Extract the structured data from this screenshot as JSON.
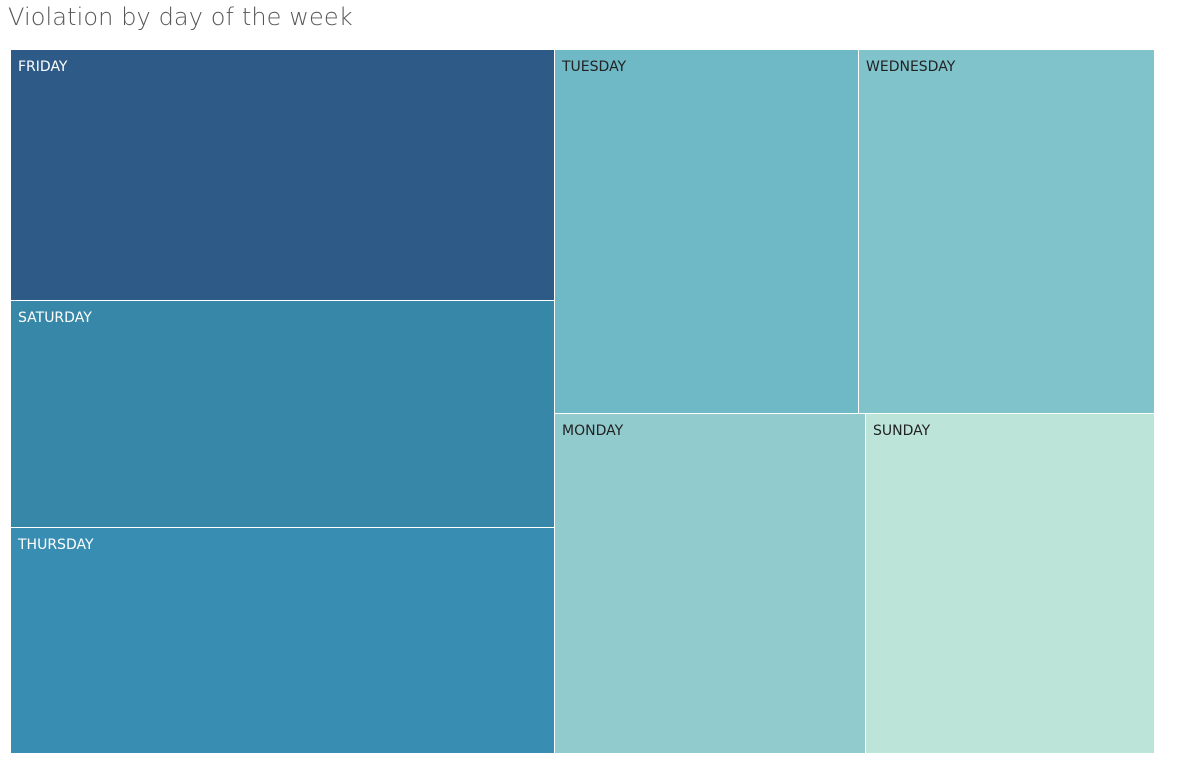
{
  "chart_data": {
    "type": "treemap",
    "title": "Violation by day of the week",
    "tiles": [
      {
        "label": "FRIDAY",
        "color": "#2e5a87",
        "text_color": "#ffffff"
      },
      {
        "label": "SATURDAY",
        "color": "#3788a8",
        "text_color": "#ffffff"
      },
      {
        "label": "THURSDAY",
        "color": "#388db2",
        "text_color": "#ffffff"
      },
      {
        "label": "TUESDAY",
        "color": "#6fb8c5",
        "text_color": "#222222"
      },
      {
        "label": "WEDNESDAY",
        "color": "#80c3cb",
        "text_color": "#222222"
      },
      {
        "label": "MONDAY",
        "color": "#91cbce",
        "text_color": "#222222"
      },
      {
        "label": "SUNDAY",
        "color": "#bde4d9",
        "text_color": "#222222"
      }
    ]
  }
}
